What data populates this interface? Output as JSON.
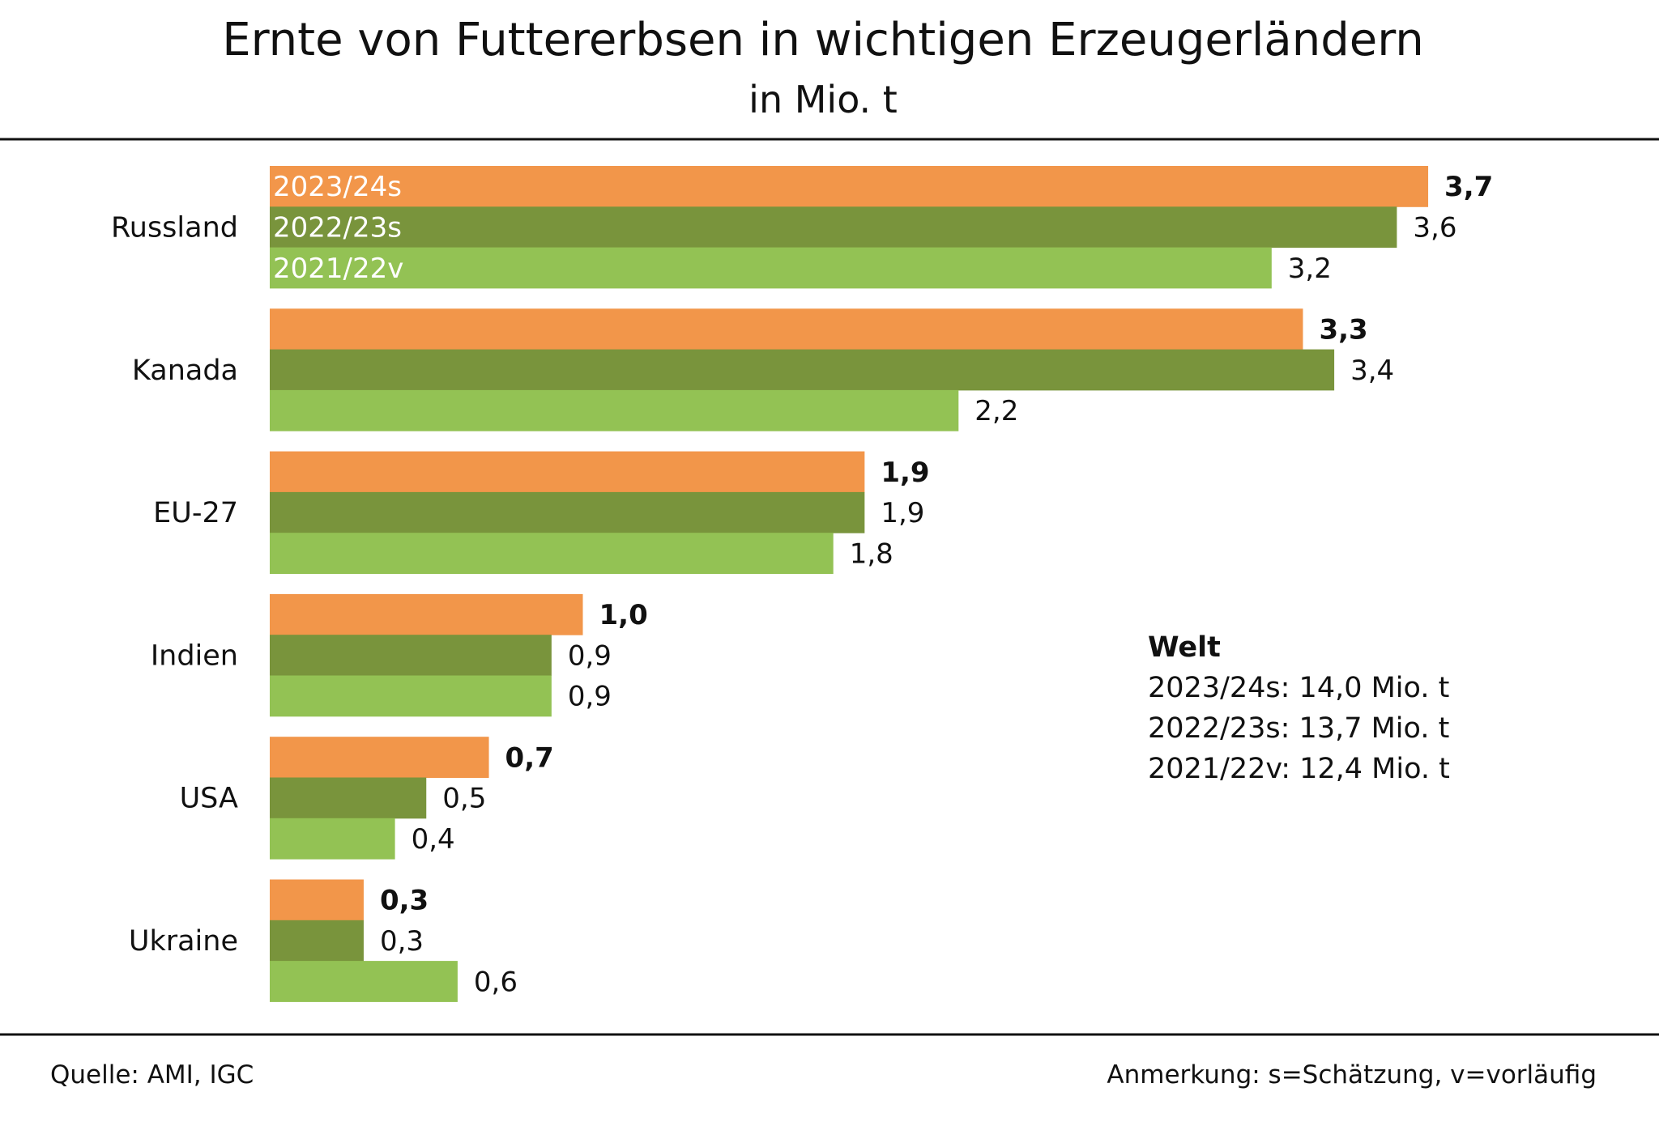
{
  "chart_data": {
    "type": "bar",
    "orientation": "horizontal",
    "title": "Ernte von Futtererbsen in wichtigen Erzeugerländern",
    "subtitle": "in Mio. t",
    "categories": [
      "Russland",
      "Kanada",
      "EU-27",
      "Indien",
      "USA",
      "Ukraine"
    ],
    "series": [
      {
        "name": "2023/24s",
        "color": "#F2964A",
        "values": [
          3.7,
          3.3,
          1.9,
          1.0,
          0.7,
          0.3
        ],
        "labels": [
          "3,7",
          "3,3",
          "1,9",
          "1,0",
          "0,7",
          "0,3"
        ]
      },
      {
        "name": "2022/23s",
        "color": "#79943C",
        "values": [
          3.6,
          3.4,
          1.9,
          0.9,
          0.5,
          0.3
        ],
        "labels": [
          "3,6",
          "3,4",
          "1,9",
          "0,9",
          "0,5",
          "0,3"
        ]
      },
      {
        "name": "2021/22v",
        "color": "#93C254",
        "values": [
          3.2,
          2.2,
          1.8,
          0.9,
          0.4,
          0.6
        ],
        "labels": [
          "3,2",
          "2,2",
          "1,8",
          "0,9",
          "0,4",
          "0,6"
        ]
      }
    ],
    "legend": "inside-first-group",
    "grid": false,
    "xlim": [
      0,
      3.7
    ]
  },
  "annotation": {
    "heading": "Welt",
    "lines": [
      "2023/24s: 14,0 Mio. t",
      "2022/23s: 13,7 Mio. t",
      "2021/22v: 12,4 Mio. t"
    ]
  },
  "footer": {
    "source": "Quelle:  AMI, IGC",
    "note": "Anmerkung: s=Schätzung, v=vorläufig"
  }
}
